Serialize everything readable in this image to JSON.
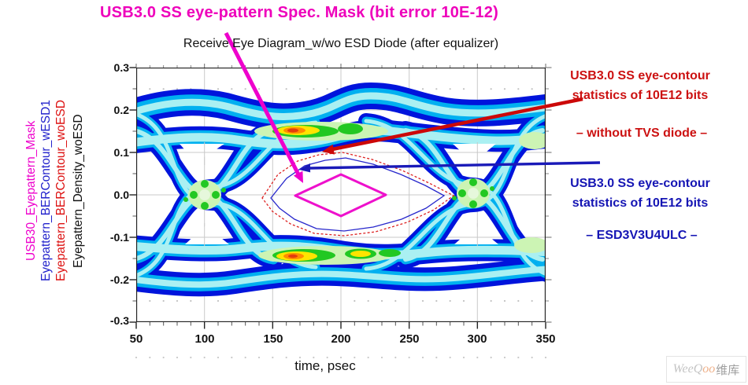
{
  "titles": {
    "mask_title": "USB3.0 SS eye-pattern Spec. Mask (bit error 10E-12)",
    "chart_title": "Receive Eye Diagram_w/wo ESD Diode (after equalizer)"
  },
  "y_axis_series_labels": [
    {
      "text": "USB30_Eyepattern_Mask",
      "color": "#ee00cc"
    },
    {
      "text": "Eyepattern_BERContour_wESD1",
      "color": "#2222cc"
    },
    {
      "text": "Eyepattern_BERContour_woESD",
      "color": "#dd1111"
    },
    {
      "text": "Eyepattern_Density_woESD",
      "color": "#111111"
    }
  ],
  "annotations": {
    "red_line1": "USB3.0 SS eye-contour",
    "red_line2": "statistics of 10E12 bits",
    "red_sub": "– without TVS diode –",
    "blue_line1": "USB3.0 SS eye-contour",
    "blue_line2": "statistics of 10E12 bits",
    "blue_sub": "– ESD3V3U4ULC –"
  },
  "axis": {
    "x_title": "time, psec"
  },
  "watermark": {
    "wee": "WeeQ",
    "oo": "oo",
    "cn": "维库"
  },
  "colors": {
    "title_magenta": "#ee00bb",
    "annotation_red": "#cc1111",
    "annotation_blue": "#1515b4",
    "grid_gray": "#c9c9c9",
    "border_black": "#222222",
    "mask_magenta": "#ee10cc",
    "contour_red": "#dd2222",
    "contour_blue": "#2828cc",
    "arrow_magenta": "#ee00cc",
    "arrow_red": "#cc0808",
    "arrow_blue": "#1a1ab8",
    "d_blue": "#0014dc",
    "d_cyan": "#00b0f0",
    "d_palecyan": "#aaf0f2",
    "d_palegreen": "#ccf4b4",
    "d_green": "#22c822",
    "d_yellow": "#ffe400",
    "d_orange": "#ff8c00",
    "d_hotcore": "#e43c0c",
    "d_flowercenter": "#e6f8dc",
    "watermark_gray": "#c4c4c4",
    "watermark_peach": "#eeb088",
    "watermark_dark": "#9e9e9e"
  },
  "chart_data": {
    "type": "heatmap",
    "subtype": "eye_diagram_density_with_BER_contours_and_spec_mask",
    "title": "Receive Eye Diagram_w/wo ESD Diode (after equalizer)",
    "xlabel": "time, psec",
    "ylabel": "",
    "xlim": [
      50,
      350
    ],
    "ylim": [
      -0.3,
      0.3
    ],
    "grid": true,
    "x_tick_labels": [
      "50",
      "100",
      "150",
      "200",
      "250",
      "300",
      "350"
    ],
    "y_tick_labels": [
      "0.3",
      "0.2",
      "0.1",
      "0.0",
      "-0.1",
      "-0.2",
      "-0.3"
    ],
    "x_minor_step_psec": 10,
    "y_minor_step_v": 0.05,
    "series": [
      {
        "name": "USB30_Eyepattern_Mask",
        "role": "USB3.0 SS eye-pattern spec mask, bit error 10E-12",
        "color": "#ee10cc",
        "mask_vertices_t_v": [
          [
            167,
            0.0
          ],
          [
            200,
            0.047
          ],
          [
            233,
            0.0
          ],
          [
            200,
            -0.051
          ]
        ]
      },
      {
        "name": "Eyepattern_BERContour_wESD1",
        "role": "eye-contour statistics of 10E12 bits with ESD3V3U4ULC diode",
        "color": "#2828cc",
        "extent_t_psec": [
          148,
          276
        ],
        "extent_v": [
          -0.093,
          0.094
        ]
      },
      {
        "name": "Eyepattern_BERContour_woESD",
        "role": "eye-contour statistics of 10E12 bits without TVS diode",
        "color": "#dd2222",
        "extent_t_psec": [
          142,
          283
        ],
        "extent_v": [
          -0.1,
          0.101
        ]
      },
      {
        "name": "Eyepattern_Density_woESD",
        "role": "eye density heatmap after equalizer",
        "colormap_low_to_high": [
          "#0014dc",
          "#00b0f0",
          "#aaf0f2",
          "#ccf4b4",
          "#22c822",
          "#ffe400",
          "#ff8c00",
          "#e43c0c"
        ]
      }
    ],
    "eye_features": {
      "bit_period_psec": 200,
      "crossing_times_psec": [
        100,
        300
      ],
      "rail_levels_v": [
        0.15,
        -0.15
      ],
      "vertical_eye_opening_v": [
        -0.105,
        0.107
      ],
      "density_hot_spots": [
        {
          "t_psec": 168,
          "v": 0.15
        },
        {
          "t_psec": 167,
          "v": -0.145
        },
        {
          "t_psec": 215,
          "v": -0.145
        }
      ]
    },
    "legend_position": "left-rotated"
  }
}
